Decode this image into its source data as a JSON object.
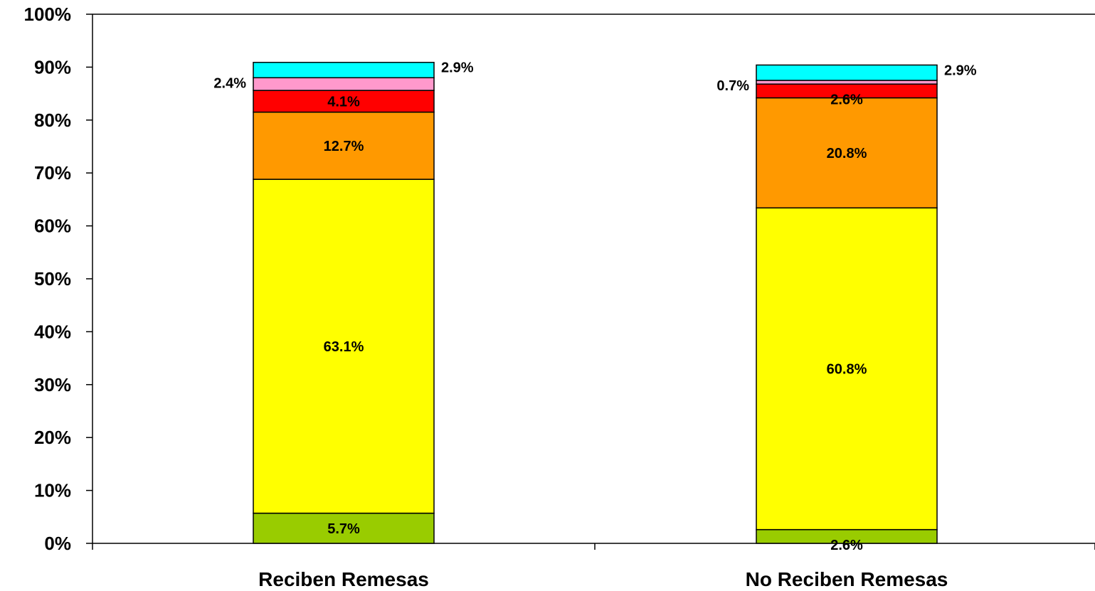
{
  "chart_data": {
    "type": "bar",
    "stacked": true,
    "categories": [
      "Reciben Remesas",
      "No Reciben Remesas"
    ],
    "series": [
      {
        "color": "#99CC00",
        "values": [
          5.7,
          2.6
        ],
        "labels": [
          "5.7%",
          "2.6%"
        ]
      },
      {
        "color": "#FFFF00",
        "values": [
          63.1,
          60.8
        ],
        "labels": [
          "63.1%",
          "60.8%"
        ]
      },
      {
        "color": "#FF9900",
        "values": [
          12.7,
          20.8
        ],
        "labels": [
          "12.7%",
          "20.8%"
        ]
      },
      {
        "color": "#FF0000",
        "values": [
          4.1,
          2.6
        ],
        "labels": [
          "4.1%",
          "2.6%"
        ]
      },
      {
        "color": "#FF99CC",
        "values": [
          2.4,
          0.7
        ],
        "labels": [
          "2.4%",
          "0.7%"
        ]
      },
      {
        "color": "#00FFFF",
        "values": [
          2.9,
          2.9
        ],
        "labels": [
          "2.9%",
          "2.9%"
        ]
      }
    ],
    "ylim": [
      0,
      100
    ],
    "yticks": [
      "0%",
      "10%",
      "20%",
      "30%",
      "40%",
      "50%",
      "60%",
      "70%",
      "80%",
      "90%",
      "100%"
    ],
    "grid": false,
    "legend": "none"
  }
}
